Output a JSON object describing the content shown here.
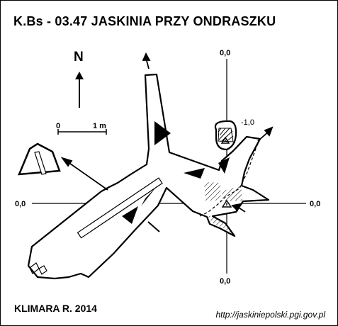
{
  "title": "K.Bs - 03.47  JASKINIA PRZY ONDRASZKU",
  "north_label": "N",
  "scale": {
    "zero": "0",
    "length": "1 m"
  },
  "datum_labels": {
    "top": "0,0",
    "left": "0,0",
    "right": "0,0",
    "bottom": "0,0",
    "chamber": "-1,0"
  },
  "author": "KLIMARA R. 2014",
  "url": "http://jaskiniepolski.pgi.gov.pl",
  "icons": [
    "north-arrow-icon",
    "entrance-arrow-icon",
    "survey-point-icon"
  ]
}
